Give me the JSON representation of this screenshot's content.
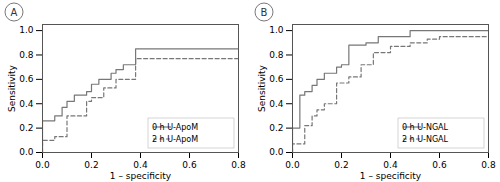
{
  "chart_data": [
    {
      "type": "line",
      "title": "A",
      "xlabel": "1 – specificity",
      "ylabel": "Sensitivity",
      "xlim": [
        0.0,
        0.8
      ],
      "ylim": [
        0.0,
        1.05
      ],
      "xticks": [
        {
          "value": 0.0,
          "label": "0.0"
        },
        0.2,
        0.4,
        0.6,
        0.8
      ],
      "yticks": [
        {
          "value": 0.0,
          "label": "0.0"
        },
        0.2,
        0.4,
        0.6,
        0.8,
        {
          "value": 1.0,
          "label": "1.0"
        }
      ],
      "grid": false,
      "legend": "lower right",
      "series": [
        {
          "name": "0 h U-ApoM",
          "color": "#777777",
          "line_style": "solid",
          "x": [
            0.0,
            0.0,
            0.05,
            0.08,
            0.1,
            0.13,
            0.18,
            0.2,
            0.23,
            0.28,
            0.3,
            0.33,
            0.38,
            0.4,
            0.65,
            0.8
          ],
          "values": [
            0.0,
            0.26,
            0.3,
            0.37,
            0.42,
            0.47,
            0.5,
            0.56,
            0.6,
            0.65,
            0.68,
            0.72,
            0.85,
            0.85,
            0.85,
            0.85
          ]
        },
        {
          "name": "2 h U-ApoM",
          "color": "#777777",
          "line_style": "dashed",
          "x": [
            0.0,
            0.0,
            0.05,
            0.1,
            0.18,
            0.2,
            0.25,
            0.3,
            0.38,
            0.4,
            0.65,
            0.8
          ],
          "values": [
            0.0,
            0.1,
            0.13,
            0.3,
            0.42,
            0.45,
            0.53,
            0.6,
            0.77,
            0.77,
            0.77,
            0.77
          ]
        }
      ]
    },
    {
      "type": "line",
      "title": "B",
      "xlabel": "1 – specificity",
      "ylabel": "Sensitivity",
      "xlim": [
        0.0,
        0.8
      ],
      "ylim": [
        0.0,
        1.05
      ],
      "xticks": [
        {
          "value": 0.0,
          "label": "0.0"
        },
        0.2,
        0.4,
        0.6,
        0.8
      ],
      "yticks": [
        {
          "value": 0.0,
          "label": "0.0"
        },
        0.2,
        0.4,
        0.6,
        0.8,
        {
          "value": 1.0,
          "label": "1.0"
        }
      ],
      "grid": false,
      "legend": "lower right",
      "series": [
        {
          "name": "0 h U-NGAL",
          "color": "#777777",
          "line_style": "solid",
          "x": [
            0.0,
            0.0,
            0.03,
            0.05,
            0.08,
            0.1,
            0.13,
            0.18,
            0.2,
            0.23,
            0.3,
            0.35,
            0.48,
            0.55,
            0.8
          ],
          "values": [
            0.0,
            0.2,
            0.47,
            0.5,
            0.55,
            0.6,
            0.65,
            0.7,
            0.72,
            0.88,
            0.9,
            0.95,
            1.0,
            1.0,
            1.0
          ]
        },
        {
          "name": "2 h U-NGAL",
          "color": "#777777",
          "line_style": "dashed",
          "x": [
            0.0,
            0.0,
            0.05,
            0.08,
            0.1,
            0.13,
            0.18,
            0.23,
            0.28,
            0.33,
            0.4,
            0.48,
            0.55,
            0.6,
            0.8
          ],
          "values": [
            0.0,
            0.07,
            0.22,
            0.3,
            0.35,
            0.4,
            0.57,
            0.62,
            0.72,
            0.82,
            0.87,
            0.9,
            0.93,
            0.95,
            0.95
          ]
        }
      ]
    }
  ]
}
